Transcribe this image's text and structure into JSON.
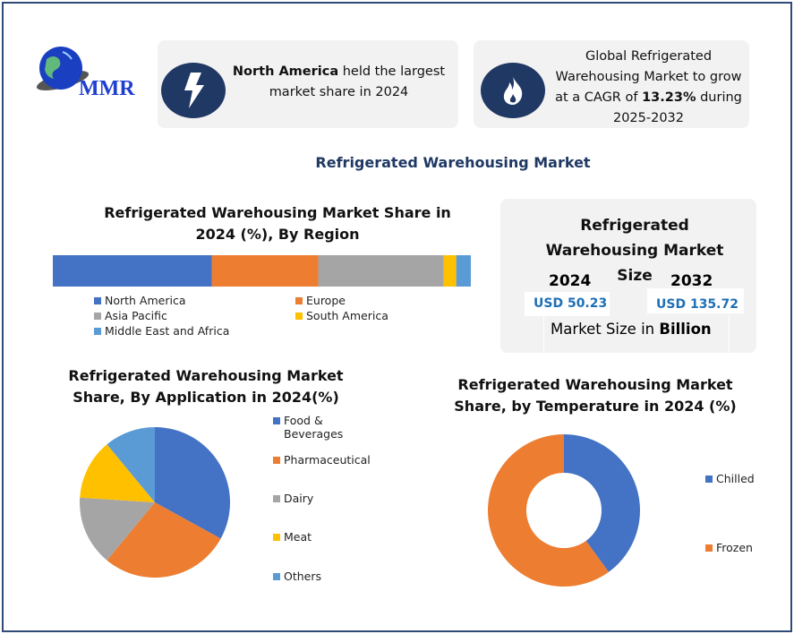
{
  "logo": {
    "text": "MMR"
  },
  "cards": {
    "region": {
      "bold": "North America",
      "rest": " held the largest market share in 2024",
      "icon": "lightning-icon"
    },
    "cagr": {
      "pre": "Global Refrigerated Warehousing Market to grow at a CAGR of ",
      "bold": "13.23%",
      "post": " during 2025-2032",
      "icon": "flame-icon"
    }
  },
  "main_title": "Refrigerated Warehousing Market",
  "market_size": {
    "title": "Refrigerated Warehousing Market Size",
    "year1": "2024",
    "value1": "USD 50.23",
    "year2": "2032",
    "value2": "USD 135.72",
    "footer_pre": "Market Size in ",
    "footer_bold": "Billion"
  },
  "colors": {
    "blue": "#4472c4",
    "orange": "#ed7d31",
    "gray": "#a5a5a5",
    "yellow": "#ffc000",
    "lightblue": "#5b9bd5",
    "navy": "#203864",
    "accent": "#1f6fb5"
  },
  "chart_data": [
    {
      "type": "bar",
      "stacked": true,
      "orientation": "horizontal",
      "title": "Refrigerated Warehousing Market Share in 2024 (%), By Region",
      "legend": "bottom",
      "series": [
        {
          "name": "North America",
          "values": [
            38
          ]
        },
        {
          "name": "Europe",
          "values": [
            25.5
          ]
        },
        {
          "name": "Asia Pacific",
          "values": [
            30
          ]
        },
        {
          "name": "South America",
          "values": [
            3
          ]
        },
        {
          "name": "Middle East and Africa",
          "values": [
            3.5
          ]
        }
      ]
    },
    {
      "type": "pie",
      "title": "Refrigerated Warehousing  Market Share, By Application in 2024(%)",
      "legend": "right",
      "categories": [
        "Food & Beverages",
        "Pharmaceutical",
        "Dairy",
        "Meat",
        "Others"
      ],
      "values": [
        33,
        28,
        15,
        13,
        11
      ]
    },
    {
      "type": "pie",
      "donut": true,
      "title": "Refrigerated Warehousing  Market Share, by Temperature in 2024 (%)",
      "legend": "right",
      "categories": [
        "Chilled",
        "Frozen"
      ],
      "values": [
        40,
        60
      ]
    }
  ]
}
